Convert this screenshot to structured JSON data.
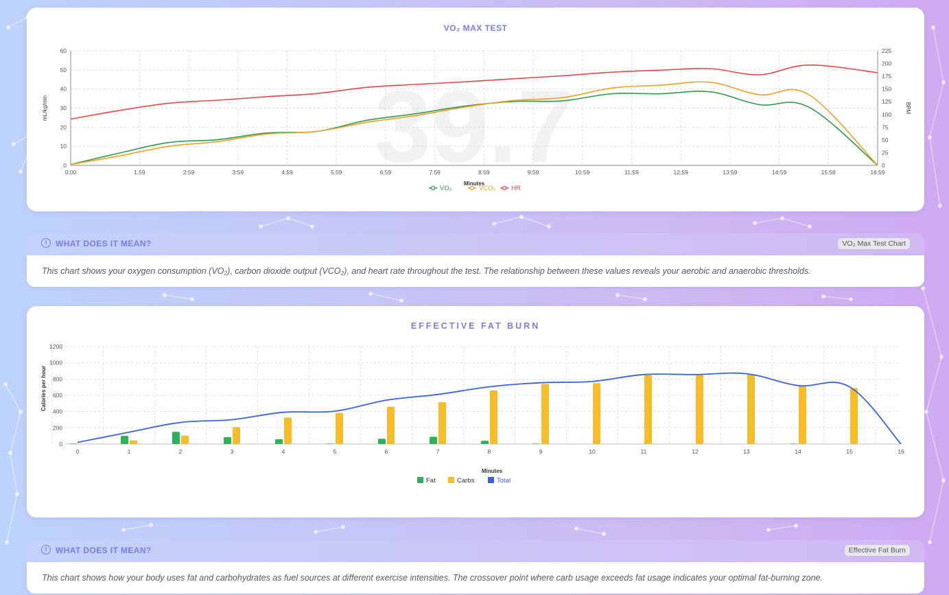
{
  "colors": {
    "vo2": "#2e9a4d",
    "vco2": "#f0a020",
    "hr": "#e84848",
    "fat": "#2fb05a",
    "carbs": "#f5bd2a",
    "total": "#3a62e0",
    "accent": "#7c7ce6"
  },
  "vo2_card": {
    "title": "VO₂ MAX TEST",
    "watermark": "39.7"
  },
  "vo2_info": {
    "icon": "info-icon",
    "title": "WHAT DOES IT MEAN?",
    "tag": "VO₂ Max Test Chart",
    "text": "This chart shows your oxygen consumption (VO₂), carbon dioxide output (VCO₂), and heart rate throughout the test. The relationship between these values reveals your aerobic and anaerobic thresholds."
  },
  "fat_card": {
    "title": "EFFECTIVE FAT BURN"
  },
  "fat_info": {
    "icon": "info-icon",
    "title": "WHAT DOES IT MEAN?",
    "tag": "Effective Fat Burn",
    "text": "This chart shows how your body uses fat and carbohydrates as fuel sources at different exercise intensities. The crossover point where carb usage exceeds fat usage indicates your optimal fat-burning zone."
  },
  "chart_data": [
    {
      "type": "line",
      "title": "VO₂ MAX TEST",
      "xlabel": "Minutes",
      "ylabel": "mL/kg/min",
      "y2label": "BPM",
      "x": [
        0,
        1,
        2,
        3,
        4,
        5,
        6,
        7,
        8,
        9,
        10,
        11,
        12,
        13,
        14,
        15,
        16,
        17
      ],
      "x_tick_labels": [
        "0:00",
        "1:59",
        "2:59",
        "3:59",
        "4:59",
        "5:59",
        "6:59",
        "7:59",
        "8:59",
        "9:59",
        "10:59",
        "11:59",
        "12:59",
        "13:59",
        "14:59",
        "15:59",
        "16:59"
      ],
      "x_tick_positions": [
        0,
        1.4,
        2.4,
        3.4,
        4.4,
        5.4,
        6.4,
        7.4,
        8.4,
        9.4,
        10.4,
        11.4,
        12.4,
        13.4,
        14.4,
        15.4,
        16.4
      ],
      "ylim": [
        0,
        60
      ],
      "yticks": [
        0,
        10,
        20,
        30,
        40,
        50,
        60
      ],
      "y2lim": [
        0,
        225
      ],
      "y2ticks": [
        0,
        25,
        50,
        75,
        100,
        125,
        150,
        175,
        200,
        225
      ],
      "grid": true,
      "legend": "bottom-center",
      "series": [
        {
          "name": "VO₂",
          "axis": "left",
          "x": [
            0,
            1,
            2,
            3,
            4,
            5,
            6,
            7,
            8,
            9,
            10,
            11,
            12,
            13,
            14,
            15,
            16.4
          ],
          "values": [
            0.5,
            6.5,
            12,
            13.5,
            17,
            17.8,
            23.5,
            27,
            31,
            33.5,
            33.8,
            37.5,
            37.5,
            38.5,
            31.8,
            30.5,
            0
          ]
        },
        {
          "name": "VCO₂",
          "axis": "left",
          "x": [
            0,
            1,
            2,
            3,
            4,
            5,
            6,
            7,
            8,
            9,
            10,
            11,
            12,
            13,
            14,
            15,
            16.4
          ],
          "values": [
            0.5,
            5,
            10,
            12.5,
            16.5,
            17.8,
            22.5,
            26,
            30.5,
            34,
            35.5,
            40.5,
            42,
            43.5,
            37,
            37,
            0
          ]
        },
        {
          "name": "HR",
          "axis": "right",
          "x": [
            0,
            1,
            2,
            3,
            4,
            5,
            6,
            7,
            8,
            9,
            10,
            11,
            12,
            13,
            14,
            15,
            16.4
          ],
          "values": [
            91,
            108,
            122,
            128,
            135,
            141,
            153,
            159,
            164,
            170,
            176,
            183,
            187,
            190,
            178,
            197,
            182
          ]
        }
      ]
    },
    {
      "type": "bar",
      "title": "EFFECTIVE FAT BURN",
      "xlabel": "Minutes",
      "ylabel": "Calories per hour",
      "categories": [
        "0",
        "1",
        "2",
        "3",
        "4",
        "5",
        "6",
        "7",
        "8",
        "9",
        "10",
        "11",
        "12",
        "13",
        "14",
        "15",
        "16"
      ],
      "ylim": [
        0,
        1200
      ],
      "yticks": [
        0,
        200,
        400,
        600,
        800,
        1000,
        1200
      ],
      "grid": true,
      "legend": "bottom-center",
      "series": [
        {
          "name": "Fat",
          "kind": "bar",
          "values": [
            5,
            100,
            150,
            85,
            60,
            5,
            65,
            90,
            40,
            5,
            0,
            0,
            0,
            0,
            5,
            0,
            0
          ]
        },
        {
          "name": "Carbs",
          "kind": "bar",
          "values": [
            0,
            45,
            105,
            210,
            325,
            385,
            460,
            515,
            660,
            740,
            750,
            850,
            850,
            860,
            710,
            690,
            0
          ]
        },
        {
          "name": "Total",
          "kind": "line",
          "values": [
            20,
            145,
            265,
            300,
            390,
            405,
            540,
            610,
            705,
            755,
            770,
            855,
            855,
            865,
            720,
            705,
            0
          ]
        }
      ]
    }
  ]
}
